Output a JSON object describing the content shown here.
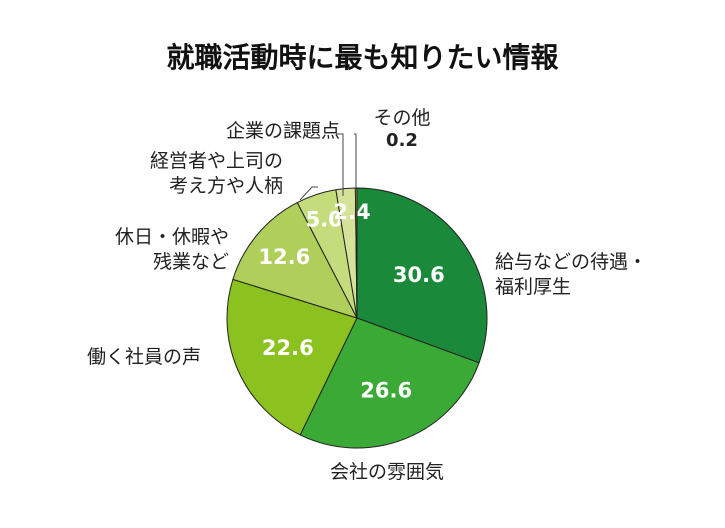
{
  "chart_data": {
    "type": "pie",
    "title": "就職活動時に最も知りたい情報",
    "slices": [
      {
        "label_lines": [
          "給与などの待遇・",
          "福利厚生"
        ],
        "value": 30.6,
        "value_label": "30.6",
        "color": "#1a8a3a"
      },
      {
        "label_lines": [
          "会社の雰囲気"
        ],
        "value": 26.6,
        "value_label": "26.6",
        "color": "#3aa935"
      },
      {
        "label_lines": [
          "働く社員の声"
        ],
        "value": 22.6,
        "value_label": "22.6",
        "color": "#8cc220"
      },
      {
        "label_lines": [
          "休日・休暇や",
          "残業など"
        ],
        "value": 12.6,
        "value_label": "12.6",
        "color": "#afcf5a"
      },
      {
        "label_lines": [
          "経営者や上司の",
          "考え方や人柄"
        ],
        "value": 5.0,
        "value_label": "5.0",
        "color": "#c5dc7c"
      },
      {
        "label_lines": [
          "企業の課題点"
        ],
        "value": 2.4,
        "value_label": "2.4",
        "color": "#d5e39a"
      },
      {
        "label_lines": [
          "その他"
        ],
        "value": 0.2,
        "value_label": "0.2",
        "color": "#c9a13c"
      }
    ]
  }
}
